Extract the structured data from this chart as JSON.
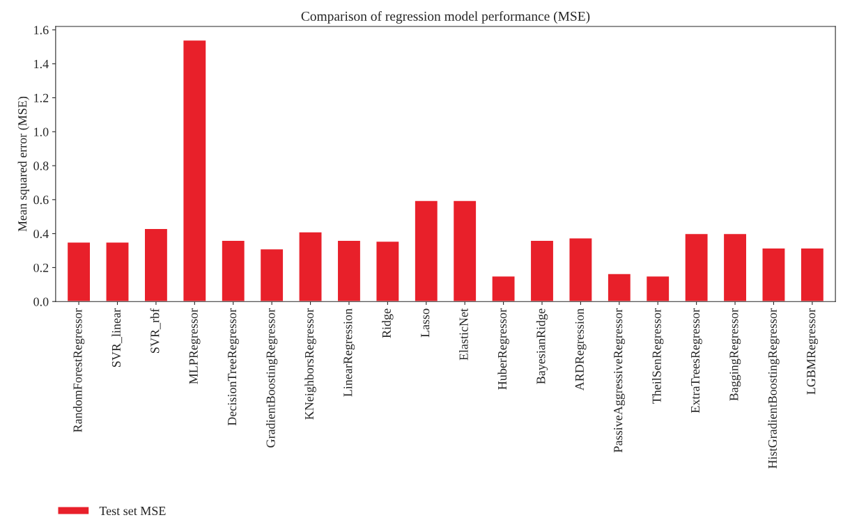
{
  "chart_data": {
    "type": "bar",
    "title": "Comparison of regression model performance (MSE)",
    "ylabel": "Mean squared error (MSE)",
    "categories": [
      "RandomForestRegressor",
      "SVR_linear",
      "SVR_rbf",
      "MLPRegressor",
      "DecisionTreeRegressor",
      "GradientBoostingRegressor",
      "KNeighborsRegressor",
      "LinearRegression",
      "Ridge",
      "Lasso",
      "ElasticNet",
      "HuberRegressor",
      "BayesianRidge",
      "ARDRegression",
      "PassiveAggressiveRegressor",
      "TheilSenRegressor",
      "ExtraTreesRegressor",
      "BaggingRegressor",
      "HistGradientBoostingRegressor",
      "LGBMRegressor"
    ],
    "series": [
      {
        "name": "Test set MSE",
        "color": "#e8202a",
        "values": [
          0.35,
          0.35,
          0.43,
          1.54,
          0.36,
          0.31,
          0.41,
          0.36,
          0.355,
          0.595,
          0.595,
          0.15,
          0.36,
          0.375,
          0.165,
          0.15,
          0.4,
          0.4,
          0.315,
          0.315
        ]
      }
    ],
    "ylim": [
      0,
      1.62
    ],
    "yticks": [
      {
        "value": 0,
        "label": "0.0"
      },
      0.2,
      0.4,
      0.6,
      0.8,
      {
        "value": 1,
        "label": "1.0"
      },
      1.2,
      1.4,
      1.6
    ],
    "grid": false,
    "legend": "bottom left"
  }
}
